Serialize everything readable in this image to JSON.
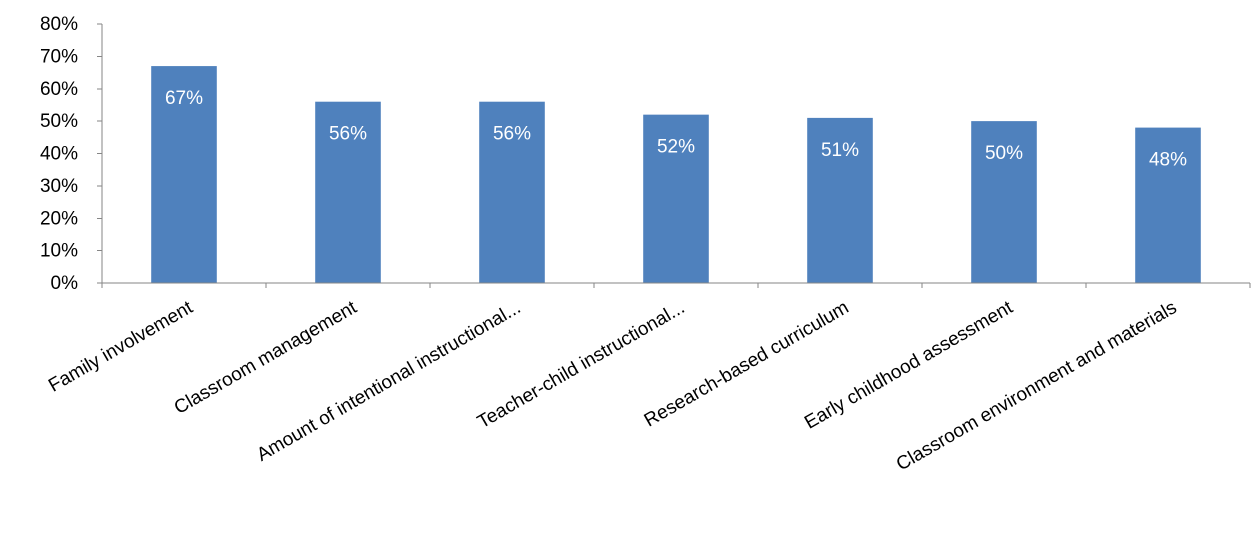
{
  "chart_data": {
    "type": "bar",
    "title": "",
    "xlabel": "",
    "ylabel": "",
    "categories": [
      "Family involvement",
      "Classroom management",
      "Amount of intentional instructional...",
      "Teacher-child instructional...",
      "Research-based curriculum",
      "Early childhood assessment",
      "Classroom environment and materials"
    ],
    "values": [
      0.67,
      0.56,
      0.56,
      0.52,
      0.51,
      0.5,
      0.48
    ],
    "data_labels": [
      "67%",
      "56%",
      "56%",
      "52%",
      "51%",
      "50%",
      "48%"
    ],
    "ylim": [
      0,
      0.8
    ],
    "y_ticks": [
      0,
      0.1,
      0.2,
      0.3,
      0.4,
      0.5,
      0.6,
      0.7,
      0.8
    ],
    "y_tick_labels": [
      "0%",
      "10%",
      "20%",
      "30%",
      "40%",
      "50%",
      "60%",
      "70%",
      "80%"
    ],
    "bar_color": "#4F81BD",
    "label_color": "#FFFFFF",
    "axis_color": "#868686",
    "grid": false,
    "legend": "none"
  }
}
